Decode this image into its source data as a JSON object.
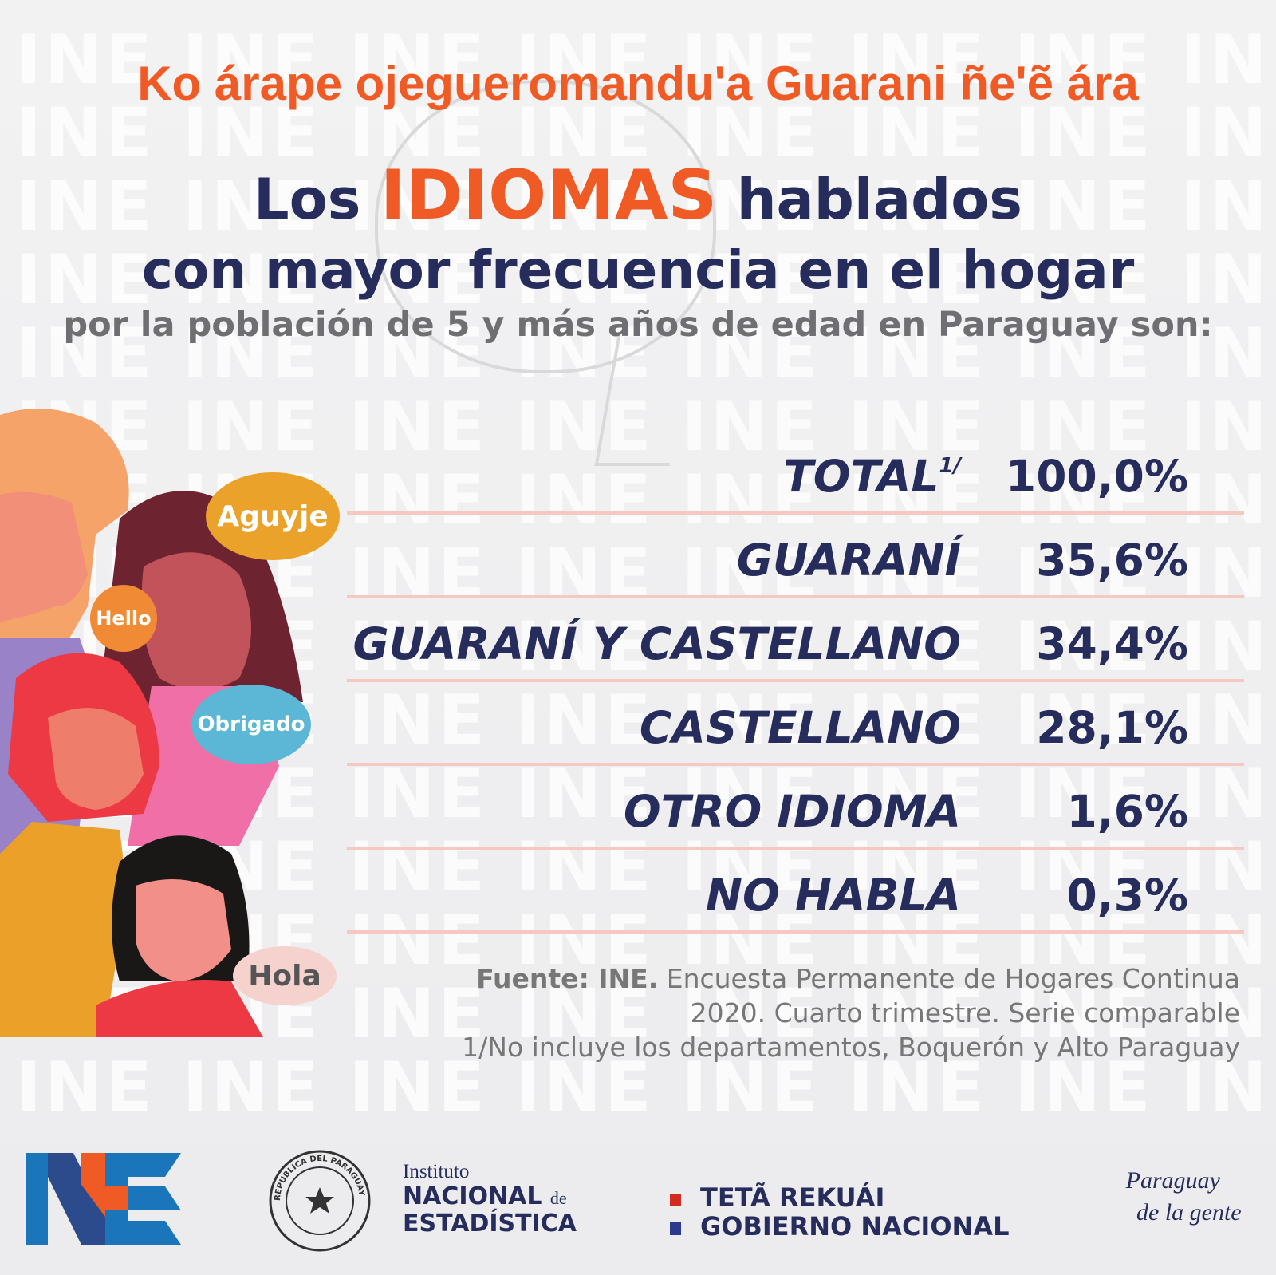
{
  "header": {
    "guarani_line": "Ko árape ojegueromandu'a Guarani ñe'ẽ ára",
    "title_pre": "Los",
    "title_highlight": "IDIOMAS",
    "title_post": "hablados",
    "title_line2": "con mayor frecuencia en el hogar",
    "subtitle": "por la población de 5 y más años de edad en Paraguay son:"
  },
  "watermark_text": "INE INE INE INE INE INE INE INE INE INE INE",
  "bubbles": {
    "aguyje": "Aguyje",
    "hello": "Hello",
    "obrigado": "Obrigado",
    "hola": "Hola"
  },
  "table": {
    "total_label": "TOTAL",
    "total_sup": "1/",
    "total_value": "100,0%"
  },
  "chart_data": {
    "type": "table",
    "categories": [
      "GUARANÍ",
      "GUARANÍ Y CASTELLANO",
      "CASTELLANO",
      "OTRO IDIOMA",
      "NO HABLA"
    ],
    "values": [
      35.6,
      34.4,
      28.1,
      1.6,
      0.3
    ],
    "value_labels": [
      "35,6%",
      "34,4%",
      "28,1%",
      "1,6%",
      "0,3%"
    ],
    "unit": "%"
  },
  "source": {
    "bold": "Fuente: INE.",
    "text1": "Encuesta Permanente de Hogares Continua",
    "text2": "2020. Cuarto trimestre. Serie comparable",
    "note": "1/No incluye los departamentos, Boquerón y Alto Paraguay"
  },
  "footer": {
    "inst_line1": "Instituto",
    "inst_line2a": "NACIONAL",
    "inst_line2b": "de",
    "inst_line3": "ESTADÍSTICA",
    "seal_text": "REPUBLICA DEL PARAGUAY",
    "gov_line1": "TETÃ REKUÁI",
    "gov_line2": "GOBIERNO NACIONAL",
    "slogan_line1": "Paraguay",
    "slogan_line2": "de la gente"
  },
  "colors": {
    "accent": "#f05a24",
    "navy": "#262c5c",
    "grey_text": "#6f6f73",
    "divider": "#f5c9c2"
  }
}
